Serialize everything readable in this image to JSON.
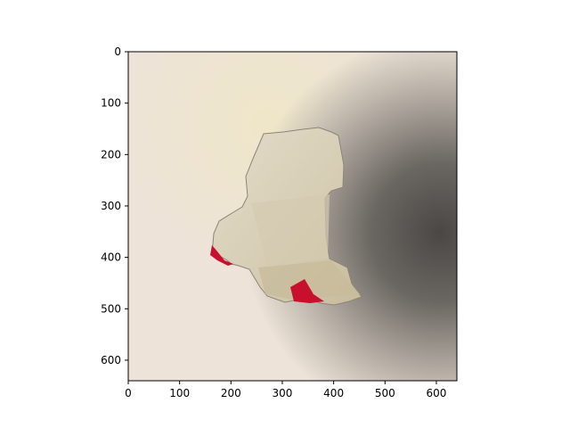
{
  "figure": {
    "image": {
      "description_name": "torn-paper-photo",
      "colors": {
        "paper_light": "#efe4d7",
        "paper_warm": "#eee7d4",
        "shadow_dark": "#4f4c49",
        "hole_inner": "#d9d2be",
        "hole_edge": "#c9bfa6",
        "red_accent": "#c8102e"
      }
    },
    "x_axis": {
      "range": [
        0,
        640
      ],
      "ticks": [
        0,
        100,
        200,
        300,
        400,
        500,
        600
      ],
      "tick_labels": [
        "0",
        "100",
        "200",
        "300",
        "400",
        "500",
        "600"
      ]
    },
    "y_axis": {
      "range": [
        0,
        640
      ],
      "inverted": true,
      "ticks": [
        0,
        100,
        200,
        300,
        400,
        500,
        600
      ],
      "tick_labels": [
        "0",
        "100",
        "200",
        "300",
        "400",
        "500",
        "600"
      ]
    }
  }
}
